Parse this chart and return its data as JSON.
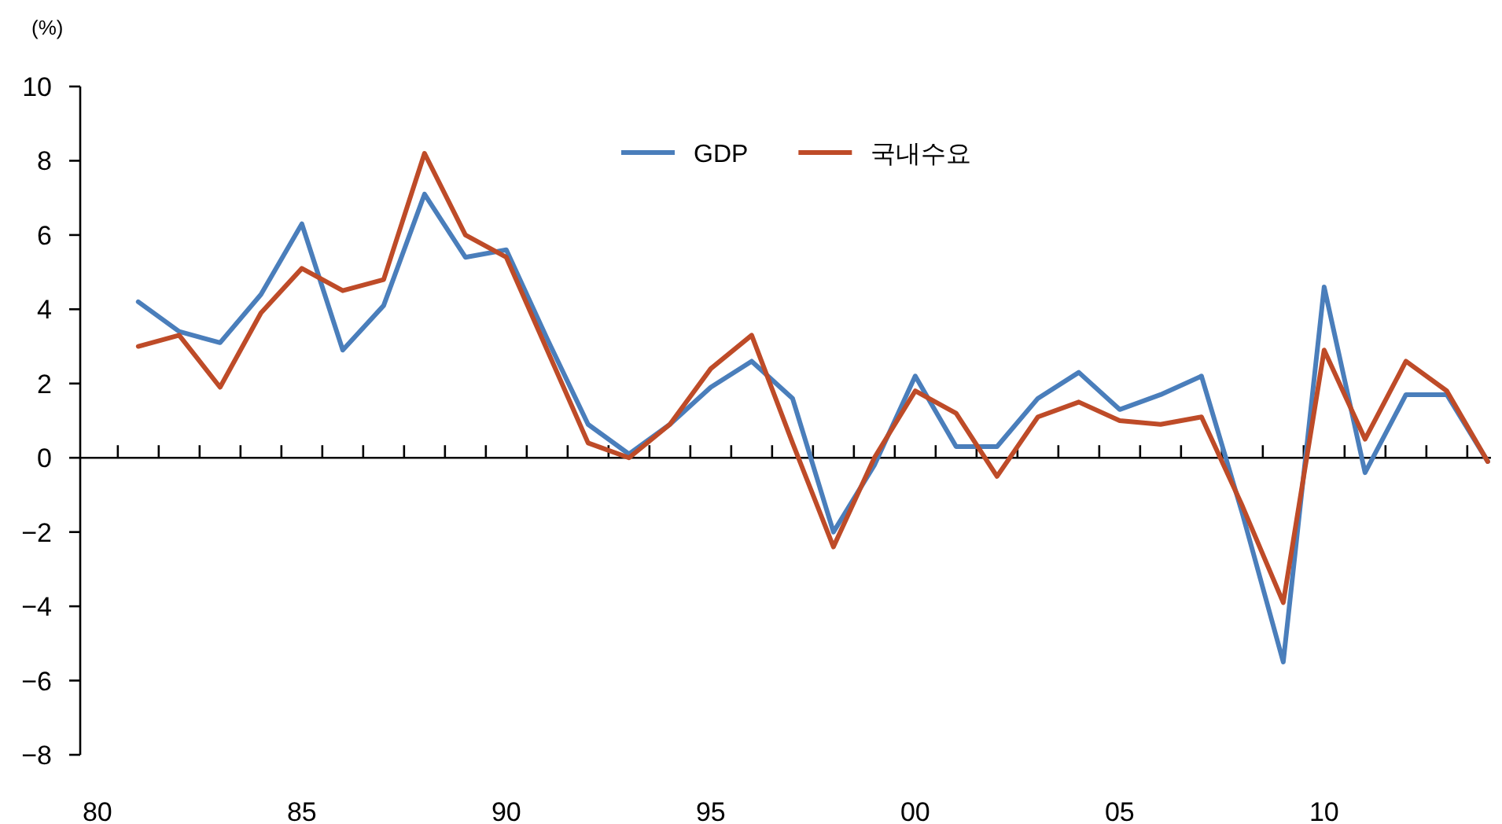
{
  "chart_data": {
    "type": "line",
    "ylabel": "(%)",
    "legend": "top",
    "marker": "none",
    "line_style": "solid",
    "x": [
      1981,
      1982,
      1983,
      1984,
      1985,
      1986,
      1987,
      1988,
      1989,
      1990,
      1991,
      1992,
      1993,
      1994,
      1995,
      1996,
      1997,
      1998,
      1999,
      2000,
      2001,
      2002,
      2003,
      2004,
      2005,
      2006,
      2007,
      2008,
      2009,
      2010,
      2011,
      2012,
      2013,
      2014
    ],
    "series": [
      {
        "name": "GDP",
        "color": "#4a7ebb",
        "values": [
          4.2,
          3.4,
          3.1,
          4.4,
          6.3,
          2.9,
          4.1,
          7.1,
          5.4,
          5.6,
          3.2,
          0.9,
          0.1,
          0.9,
          1.9,
          2.6,
          1.6,
          -2.0,
          -0.2,
          2.2,
          0.3,
          0.3,
          1.6,
          2.3,
          1.3,
          1.7,
          2.2,
          -1.5,
          -5.5,
          4.6,
          -0.4,
          1.7,
          1.7,
          -0.1
        ]
      },
      {
        "name": "국내수요",
        "color": "#be4b28",
        "values": [
          3.0,
          3.3,
          1.9,
          3.9,
          5.1,
          4.5,
          4.8,
          8.2,
          6.0,
          5.4,
          2.9,
          0.4,
          0.0,
          0.9,
          2.4,
          3.3,
          0.4,
          -2.4,
          0.0,
          1.8,
          1.2,
          -0.5,
          1.1,
          1.5,
          1.0,
          0.9,
          1.1,
          -1.3,
          -3.9,
          2.9,
          0.5,
          2.6,
          1.8,
          -0.1
        ]
      }
    ],
    "xlim": [
      1979.58,
      2014.08
    ],
    "xticks": [
      {
        "value": 1980,
        "label": "80"
      },
      {
        "value": 1985,
        "label": "85"
      },
      {
        "value": 1990,
        "label": "90"
      },
      {
        "value": 1995,
        "label": "95"
      },
      {
        "value": 2000,
        "label": "00"
      },
      {
        "value": 2005,
        "label": "05"
      },
      {
        "value": 2010,
        "label": "10"
      },
      {
        "value": 1980.5,
        "label": null
      },
      {
        "value": 1981.5,
        "label": null
      },
      {
        "value": 1982.5,
        "label": null
      },
      {
        "value": 1983.5,
        "label": null
      },
      {
        "value": 1984.5,
        "label": null
      },
      {
        "value": 1985.5,
        "label": null
      },
      {
        "value": 1986.5,
        "label": null
      },
      {
        "value": 1987.5,
        "label": null
      },
      {
        "value": 1988.5,
        "label": null
      },
      {
        "value": 1989.5,
        "label": null
      },
      {
        "value": 1990.5,
        "label": null
      },
      {
        "value": 1991.5,
        "label": null
      },
      {
        "value": 1992.5,
        "label": null
      },
      {
        "value": 1993.5,
        "label": null
      },
      {
        "value": 1994.5,
        "label": null
      },
      {
        "value": 1995.5,
        "label": null
      },
      {
        "value": 1996.5,
        "label": null
      },
      {
        "value": 1997.5,
        "label": null
      },
      {
        "value": 1998.5,
        "label": null
      },
      {
        "value": 1999.5,
        "label": null
      },
      {
        "value": 2000.5,
        "label": null
      },
      {
        "value": 2001.5,
        "label": null
      },
      {
        "value": 2002.5,
        "label": null
      },
      {
        "value": 2003.5,
        "label": null
      },
      {
        "value": 2004.5,
        "label": null
      },
      {
        "value": 2005.5,
        "label": null
      },
      {
        "value": 2006.5,
        "label": null
      },
      {
        "value": 2007.5,
        "label": null
      },
      {
        "value": 2008.5,
        "label": null
      },
      {
        "value": 2009.5,
        "label": null
      },
      {
        "value": 2010.5,
        "label": null
      },
      {
        "value": 2011.5,
        "label": null
      },
      {
        "value": 2012.5,
        "label": null
      },
      {
        "value": 2013.5,
        "label": null
      }
    ],
    "ylim": [
      -8,
      10
    ],
    "yticks": [
      10,
      8,
      6,
      4,
      2,
      0,
      {
        "value": -2,
        "label": "−2"
      },
      {
        "value": -4,
        "label": "−4"
      },
      {
        "value": -6,
        "label": "−6"
      },
      {
        "value": -8,
        "label": "−8"
      }
    ]
  }
}
